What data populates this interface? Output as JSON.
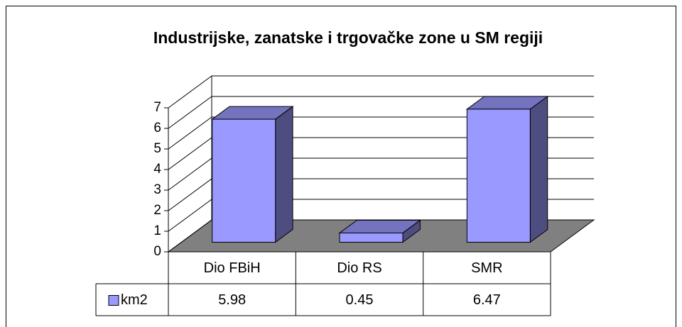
{
  "chart_data": {
    "type": "bar",
    "title": "Industrijske, zanatske i trgovačke zone u SM regiji",
    "categories": [
      "Dio FBiH",
      "Dio  RS",
      "SMR"
    ],
    "series": [
      {
        "name": "km2",
        "color": "#9999ff",
        "values": [
          5.98,
          0.45,
          6.47
        ]
      }
    ],
    "ylim": [
      0,
      7
    ],
    "yticks": [
      0,
      1,
      2,
      3,
      4,
      5,
      6,
      7
    ],
    "grid": true,
    "legend": "left"
  }
}
